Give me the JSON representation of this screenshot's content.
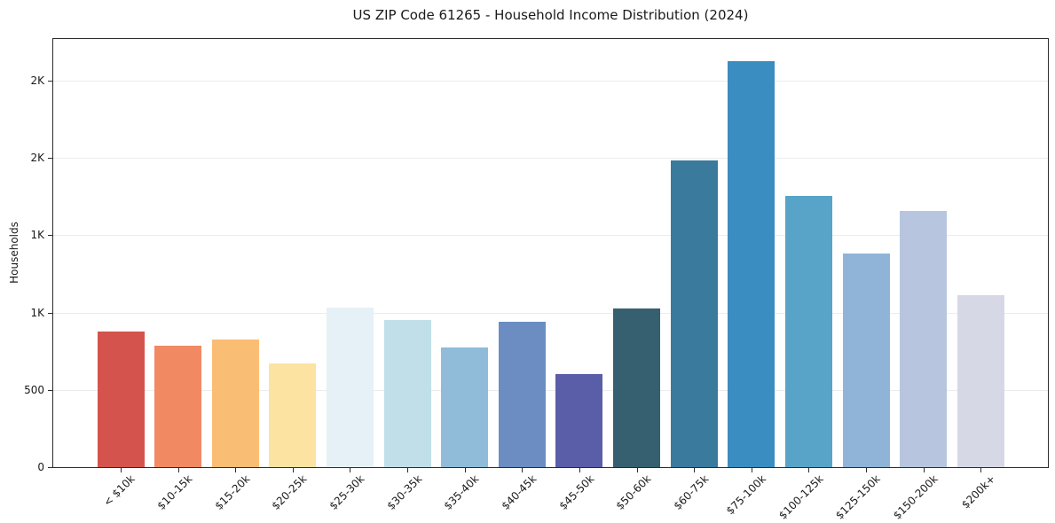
{
  "figure": {
    "background": "#ffffff",
    "text_color": "#1a1a1a",
    "grid_color": "#ececec",
    "spine_color": "#2b2b2b"
  },
  "chart_data": {
    "type": "bar",
    "title": "US ZIP Code 61265 - Household Income Distribution (2024)",
    "xlabel": "",
    "ylabel": "Households",
    "categories": [
      "< $10k",
      "$10-15k",
      "$15-20k",
      "$20-25k",
      "$25-30k",
      "$30-35k",
      "$35-40k",
      "$40-45k",
      "$45-50k",
      "$50-60k",
      "$60-75k",
      "$75-100k",
      "$100-125k",
      "$125-150k",
      "$150-200k",
      "$200k+"
    ],
    "values": [
      875,
      785,
      825,
      670,
      1030,
      950,
      775,
      940,
      600,
      1025,
      1985,
      2625,
      1755,
      1380,
      1660,
      1115
    ],
    "bar_colors": [
      "#d4544d",
      "#f18a62",
      "#fabd74",
      "#fde3a1",
      "#e5f1f6",
      "#c0dfe9",
      "#90bbd9",
      "#6b8dc2",
      "#5a5ea8",
      "#36606f",
      "#3a7a9c",
      "#3a8dc0",
      "#58a4c8",
      "#90b4d7",
      "#b7c5de",
      "#d6d8e6"
    ],
    "ylim": [
      0,
      2770
    ],
    "yticks": {
      "values": [
        0,
        500,
        1000,
        1500,
        2000,
        2500
      ],
      "labels": [
        "0",
        "500",
        "1K",
        "1K",
        "2K",
        "2K"
      ]
    },
    "grid": "horizontal",
    "legend": "none"
  }
}
